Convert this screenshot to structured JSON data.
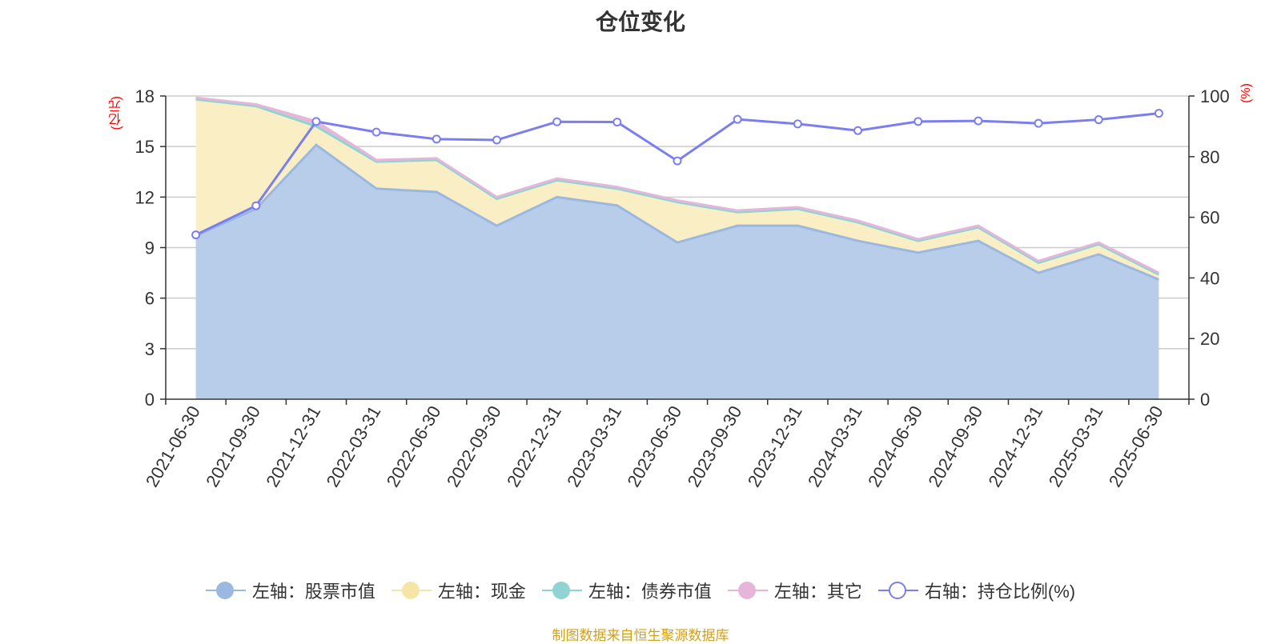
{
  "chart_data": {
    "type": "area",
    "title": "仓位变化",
    "left_axis_unit": "(亿元)",
    "right_axis_unit": "(%)",
    "categories": [
      "2021-06-30",
      "2021-09-30",
      "2021-12-31",
      "2022-03-31",
      "2022-06-30",
      "2022-09-30",
      "2022-12-31",
      "2023-03-31",
      "2023-06-30",
      "2023-09-30",
      "2023-12-31",
      "2024-03-31",
      "2024-06-30",
      "2024-09-30",
      "2024-12-31",
      "2025-03-31",
      "2025-06-30"
    ],
    "left_ylim": [
      0,
      18
    ],
    "left_ticks": [
      0,
      3,
      6,
      9,
      12,
      15,
      18
    ],
    "right_ylim": [
      0,
      100
    ],
    "right_ticks": [
      0,
      20,
      40,
      60,
      80,
      100
    ],
    "series": [
      {
        "name": "左轴：股票市值",
        "axis": "left",
        "kind": "stacked-area",
        "values": [
          9.7,
          11.3,
          15.1,
          12.5,
          12.3,
          10.3,
          12.0,
          11.5,
          9.3,
          10.3,
          10.3,
          9.4,
          8.7,
          9.4,
          7.5,
          8.6,
          7.1
        ],
        "color": "#9bb8e0",
        "fill": "#b8cdea"
      },
      {
        "name": "左轴：现金",
        "axis": "left",
        "kind": "stacked-area",
        "values": [
          8.1,
          6.1,
          1.1,
          1.6,
          1.9,
          1.6,
          1.0,
          1.0,
          2.4,
          0.8,
          1.0,
          1.1,
          0.7,
          0.8,
          0.6,
          0.6,
          0.3
        ],
        "color": "#f5e6a8",
        "fill": "#faefc4"
      },
      {
        "name": "左轴：债券市值",
        "axis": "left",
        "kind": "stacked-area",
        "values": [
          0,
          0,
          0,
          0,
          0,
          0,
          0,
          0,
          0,
          0,
          0,
          0,
          0,
          0,
          0,
          0,
          0
        ],
        "color": "#8fd3d3",
        "fill": "#8fd3d3"
      },
      {
        "name": "左轴：其它",
        "axis": "left",
        "kind": "stacked-area",
        "values": [
          0.1,
          0.1,
          0.3,
          0.1,
          0.1,
          0.1,
          0.1,
          0.1,
          0.1,
          0.1,
          0.1,
          0.1,
          0.1,
          0.1,
          0.1,
          0.1,
          0.1
        ],
        "color": "#e6b6da",
        "fill": "#e6b6da"
      },
      {
        "name": "右轴：持仓比例(%)",
        "axis": "right",
        "kind": "line",
        "values": [
          54.2,
          63.8,
          91.6,
          88.1,
          85.8,
          85.5,
          91.5,
          91.4,
          78.6,
          92.3,
          90.8,
          88.6,
          91.6,
          91.8,
          91.0,
          92.2,
          94.3
        ],
        "color": "#7b7ef0"
      }
    ],
    "grid": true,
    "legend_position": "bottom"
  },
  "footer": "制图数据来自恒生聚源数据库"
}
